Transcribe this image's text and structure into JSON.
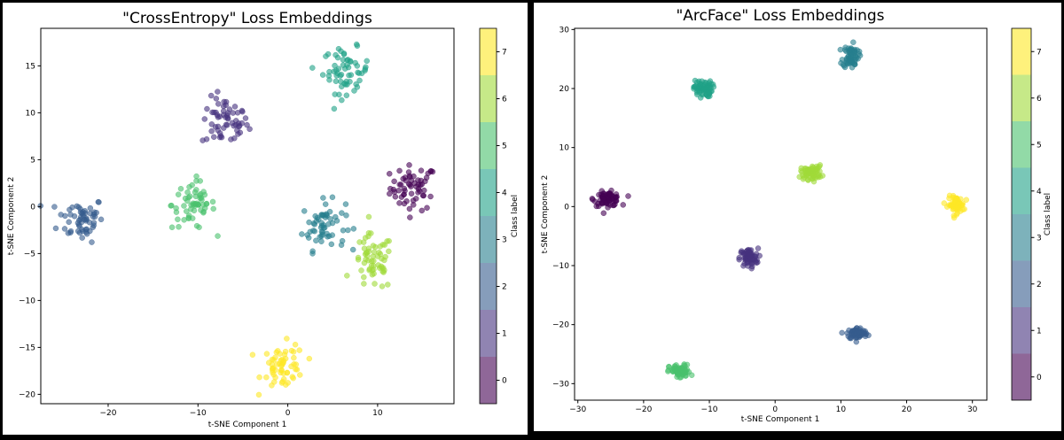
{
  "chart_data": [
    {
      "type": "scatter",
      "title": "\"CrossEntropy\" Loss Embeddings",
      "xlabel": "t-SNE Component 1",
      "ylabel": "t-SNE Component 2",
      "xlim": [
        -27.5,
        18.5
      ],
      "ylim": [
        -21,
        19
      ],
      "xticks": [
        -20,
        -10,
        0,
        10
      ],
      "yticks": [
        -20,
        -15,
        -10,
        -5,
        0,
        5,
        10,
        15
      ],
      "grid": false,
      "colorbar": {
        "label": "Class label",
        "ticks": [
          0,
          1,
          2,
          3,
          4,
          5,
          6,
          7
        ],
        "range": [
          -0.5,
          7.5
        ]
      },
      "point_alpha": 0.6,
      "clusters": [
        {
          "class": 0,
          "center": [
            14,
            2
          ],
          "sd": [
            1.3,
            1.2
          ],
          "count": 60
        },
        {
          "class": 1,
          "center": [
            -7,
            9
          ],
          "sd": [
            1.3,
            1.3
          ],
          "count": 60
        },
        {
          "class": 2,
          "center": [
            -23,
            -1.3
          ],
          "sd": [
            1.3,
            1.2
          ],
          "count": 60
        },
        {
          "class": 3,
          "center": [
            4,
            -2
          ],
          "sd": [
            1.2,
            1.3
          ],
          "count": 60
        },
        {
          "class": 4,
          "center": [
            6.5,
            14.5
          ],
          "sd": [
            1.3,
            1.2
          ],
          "count": 60
        },
        {
          "class": 5,
          "center": [
            -10.5,
            0.2
          ],
          "sd": [
            1.2,
            1.3
          ],
          "count": 60
        },
        {
          "class": 6,
          "center": [
            9.5,
            -6
          ],
          "sd": [
            1.1,
            1.5
          ],
          "count": 60
        },
        {
          "class": 7,
          "center": [
            -0.5,
            -17
          ],
          "sd": [
            1.2,
            1.2
          ],
          "count": 60
        }
      ]
    },
    {
      "type": "scatter",
      "title": "\"ArcFace\" Loss Embeddings",
      "xlabel": "t-SNE Component 1",
      "ylabel": "t-SNE Component 2",
      "xlim": [
        -30.5,
        32.2
      ],
      "ylim": [
        -32.8,
        30.2
      ],
      "xticks": [
        -30,
        -20,
        -10,
        0,
        10,
        20,
        30
      ],
      "yticks": [
        -30,
        -20,
        -10,
        0,
        10,
        20,
        30
      ],
      "grid": false,
      "colorbar": {
        "label": "Class label",
        "ticks": [
          0,
          1,
          2,
          3,
          4,
          5,
          6,
          7
        ],
        "range": [
          -0.5,
          7.5
        ]
      },
      "point_alpha": 0.6,
      "clusters": [
        {
          "class": 0,
          "center": [
            -25.5,
            1.3
          ],
          "sd": [
            1.0,
            0.6
          ],
          "count": 70
        },
        {
          "class": 1,
          "center": [
            -4,
            -8.7
          ],
          "sd": [
            0.7,
            0.8
          ],
          "count": 70
        },
        {
          "class": 2,
          "center": [
            12.5,
            -21.5
          ],
          "sd": [
            0.8,
            0.5
          ],
          "count": 70
        },
        {
          "class": 3,
          "center": [
            11.5,
            25.5
          ],
          "sd": [
            0.6,
            1.0
          ],
          "count": 70
        },
        {
          "class": 4,
          "center": [
            -11,
            20
          ],
          "sd": [
            0.7,
            0.7
          ],
          "count": 70
        },
        {
          "class": 5,
          "center": [
            -14.5,
            -28
          ],
          "sd": [
            0.8,
            0.6
          ],
          "count": 70
        },
        {
          "class": 6,
          "center": [
            5.5,
            5.8
          ],
          "sd": [
            0.8,
            0.6
          ],
          "count": 70
        },
        {
          "class": 7,
          "center": [
            27.5,
            0.3
          ],
          "sd": [
            0.6,
            0.7
          ],
          "count": 70
        }
      ]
    }
  ],
  "colors": [
    "#440154",
    "#46327e",
    "#365c8d",
    "#277f8e",
    "#1fa187",
    "#4ac16d",
    "#a0da39",
    "#fde725"
  ]
}
